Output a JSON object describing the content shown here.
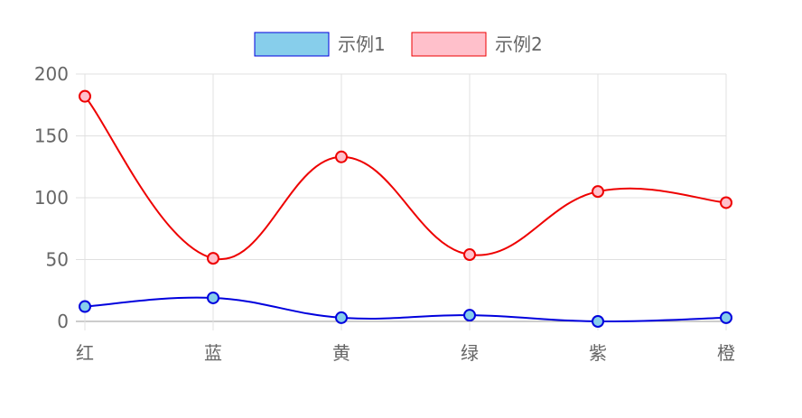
{
  "chart_data": {
    "type": "line",
    "categories": [
      "红",
      "蓝",
      "黄",
      "绿",
      "紫",
      "橙"
    ],
    "series": [
      {
        "name": "示例1",
        "values": [
          12,
          19,
          3,
          5,
          0,
          3
        ],
        "line_color": "#0000dd",
        "fill_color": "#87ceeb"
      },
      {
        "name": "示例2",
        "values": [
          182,
          51,
          133,
          54,
          105,
          96
        ],
        "line_color": "#ee0000",
        "fill_color": "#ffc0cb"
      }
    ],
    "ylim": [
      0,
      200
    ],
    "yticks": [
      0,
      50,
      100,
      150,
      200
    ],
    "grid": true,
    "legend_position": "top"
  }
}
